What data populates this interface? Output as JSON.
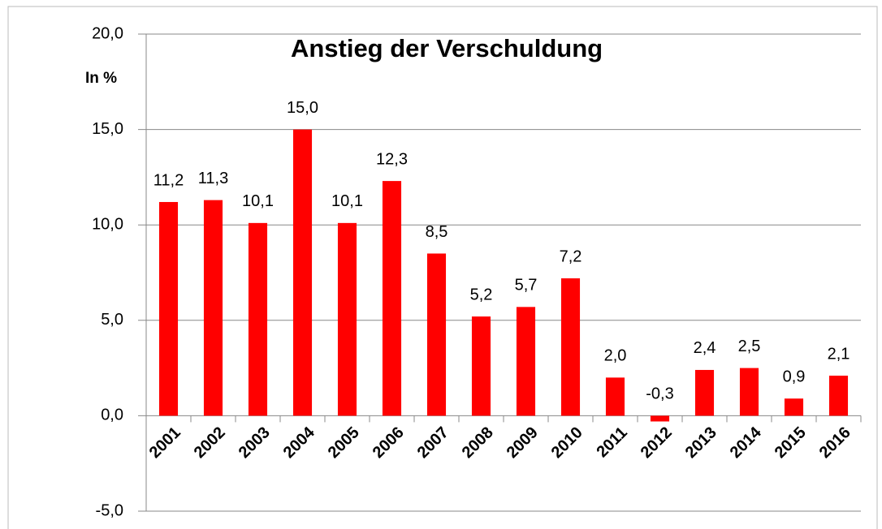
{
  "chart_data": {
    "type": "bar",
    "title": "Anstieg der Verschuldung",
    "y_label": "In %",
    "categories": [
      "2001",
      "2002",
      "2003",
      "2004",
      "2005",
      "2006",
      "2007",
      "2008",
      "2009",
      "2010",
      "2011",
      "2012",
      "2013",
      "2014",
      "2015",
      "2016"
    ],
    "values": [
      11.2,
      11.3,
      10.1,
      15.0,
      10.1,
      12.3,
      8.5,
      5.2,
      5.7,
      7.2,
      2.0,
      -0.3,
      2.4,
      2.5,
      0.9,
      2.1
    ],
    "value_labels": [
      "11,2",
      "11,3",
      "10,1",
      "15,0",
      "10,1",
      "12,3",
      "8,5",
      "5,2",
      "5,7",
      "7,2",
      "2,0",
      "-0,3",
      "2,4",
      "2,5",
      "0,9",
      "2,1"
    ],
    "color": "#ff0000",
    "ylim": [
      -5,
      20
    ],
    "yticks": [
      {
        "value": -5,
        "label": "-5,0"
      },
      {
        "value": 0,
        "label": "0,0"
      },
      {
        "value": 5,
        "label": "5,0"
      },
      {
        "value": 10,
        "label": "10,0"
      },
      {
        "value": 15,
        "label": "15,0"
      },
      {
        "value": 20,
        "label": "20,0"
      }
    ],
    "grid": true
  }
}
